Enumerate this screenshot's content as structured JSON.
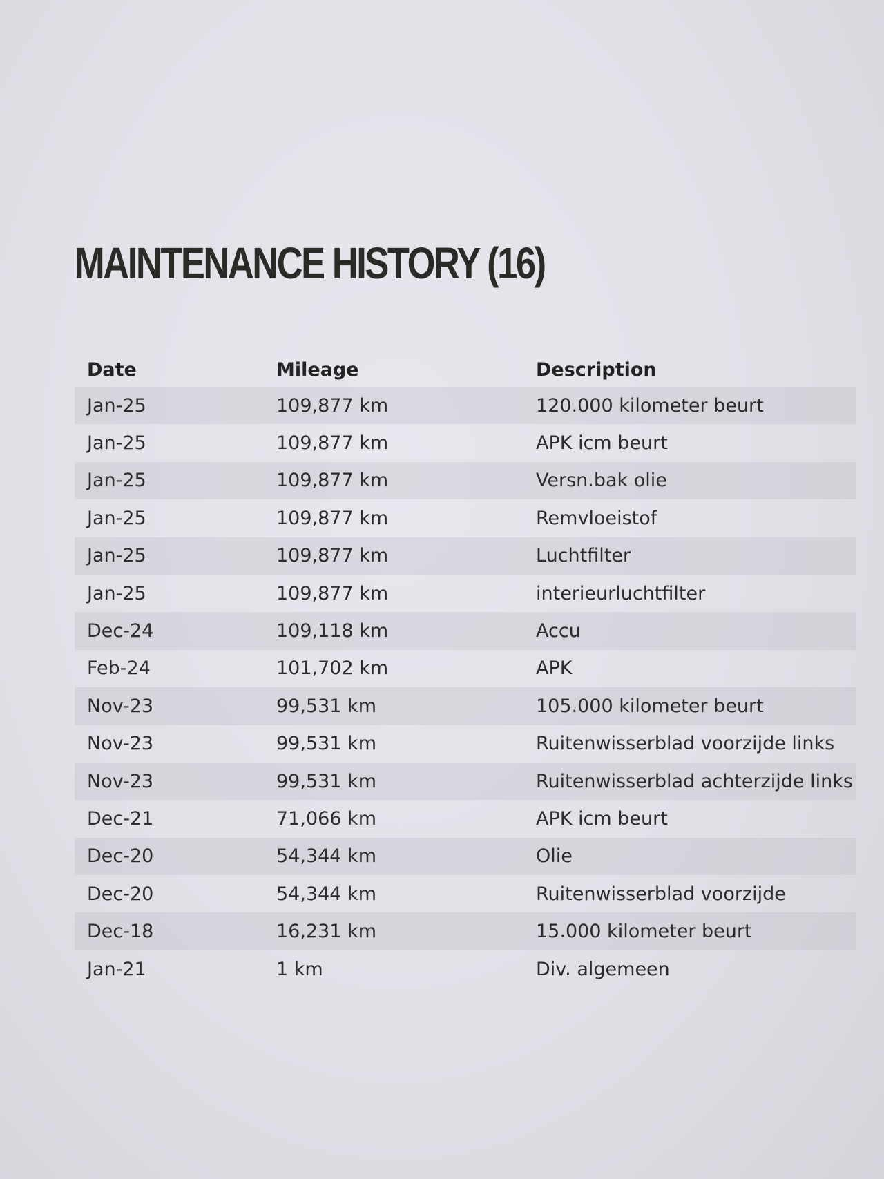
{
  "title": "MAINTENANCE HISTORY (16)",
  "table": {
    "headers": {
      "date": "Date",
      "mileage": "Mileage",
      "description": "Description"
    },
    "rows": [
      {
        "date": "Jan-25",
        "mileage": "109,877 km",
        "description": "120.000 kilometer beurt"
      },
      {
        "date": "Jan-25",
        "mileage": "109,877 km",
        "description": "APK icm beurt"
      },
      {
        "date": "Jan-25",
        "mileage": "109,877 km",
        "description": "Versn.bak olie"
      },
      {
        "date": "Jan-25",
        "mileage": "109,877 km",
        "description": "Remvloeistof"
      },
      {
        "date": "Jan-25",
        "mileage": "109,877 km",
        "description": "Luchtfilter"
      },
      {
        "date": "Jan-25",
        "mileage": "109,877 km",
        "description": "interieurluchtfilter"
      },
      {
        "date": "Dec-24",
        "mileage": "109,118 km",
        "description": "Accu"
      },
      {
        "date": "Feb-24",
        "mileage": "101,702 km",
        "description": "APK"
      },
      {
        "date": "Nov-23",
        "mileage": "99,531 km",
        "description": "105.000 kilometer beurt"
      },
      {
        "date": "Nov-23",
        "mileage": "99,531 km",
        "description": "Ruitenwisserblad voorzijde links"
      },
      {
        "date": "Nov-23",
        "mileage": "99,531 km",
        "description": "Ruitenwisserblad achterzijde links"
      },
      {
        "date": "Dec-21",
        "mileage": "71,066 km",
        "description": "APK icm beurt"
      },
      {
        "date": "Dec-20",
        "mileage": "54,344 km",
        "description": "Olie"
      },
      {
        "date": "Dec-20",
        "mileage": "54,344 km",
        "description": "Ruitenwisserblad voorzijde"
      },
      {
        "date": "Dec-18",
        "mileage": "16,231 km",
        "description": "15.000 kilometer beurt"
      },
      {
        "date": "Jan-21",
        "mileage": "1 km",
        "description": "Div. algemeen"
      }
    ]
  }
}
